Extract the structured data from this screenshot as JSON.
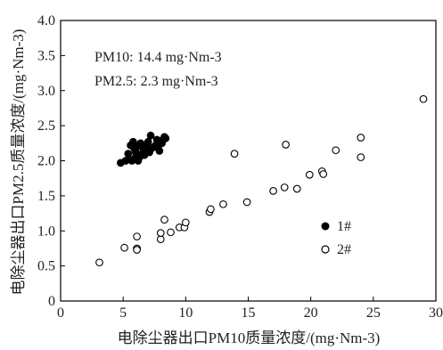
{
  "chart_data": {
    "type": "scatter",
    "xlabel": "电除尘器出口PM10质量浓度/(mg·Nm-3)",
    "ylabel": "电除尘器出口PM2.5质量浓度/(mg·Nm-3)",
    "xlim": [
      0,
      30
    ],
    "ylim": [
      0,
      4.0
    ],
    "xticks": [
      "0",
      "5",
      "10",
      "15",
      "20",
      "25",
      "30"
    ],
    "yticks": [
      "0",
      "0.5",
      "1.0",
      "1.5",
      "2.0",
      "2.5",
      "3.0",
      "3.5",
      "4.0"
    ],
    "annotations": [
      "PM10: 14.4 mg·Nm-3",
      "PM2.5: 2.3 mg·Nm-3"
    ],
    "legend_position": "right-middle",
    "series": [
      {
        "name": "1#",
        "marker": "filled-circle",
        "color": "#000000",
        "points": [
          [
            4.8,
            1.97
          ],
          [
            5.2,
            2.0
          ],
          [
            5.5,
            2.02
          ],
          [
            5.7,
            2.0
          ],
          [
            6.0,
            2.05
          ],
          [
            6.2,
            2.0
          ],
          [
            6.5,
            2.1
          ],
          [
            6.7,
            2.08
          ],
          [
            6.9,
            2.12
          ],
          [
            7.1,
            2.12
          ],
          [
            7.3,
            2.18
          ],
          [
            7.6,
            2.22
          ],
          [
            7.8,
            2.2
          ],
          [
            8.0,
            2.28
          ],
          [
            8.2,
            2.3
          ],
          [
            8.3,
            2.34
          ],
          [
            5.6,
            2.22
          ],
          [
            5.9,
            2.17
          ],
          [
            6.1,
            2.2
          ],
          [
            6.4,
            2.25
          ],
          [
            6.8,
            2.15
          ],
          [
            7.0,
            2.27
          ],
          [
            7.5,
            2.2
          ],
          [
            7.9,
            2.14
          ],
          [
            8.1,
            2.25
          ],
          [
            6.3,
            2.05
          ],
          [
            6.6,
            2.18
          ],
          [
            5.4,
            2.1
          ],
          [
            7.2,
            2.36
          ],
          [
            6.0,
            2.12
          ],
          [
            5.8,
            2.27
          ],
          [
            7.7,
            2.3
          ],
          [
            8.4,
            2.32
          ],
          [
            6.9,
            2.22
          ],
          [
            6.1,
            2.08
          ]
        ]
      },
      {
        "name": "2#",
        "marker": "open-circle",
        "color": "#000000",
        "points": [
          [
            3.1,
            0.55
          ],
          [
            5.1,
            0.76
          ],
          [
            6.1,
            0.75
          ],
          [
            6.1,
            0.92
          ],
          [
            6.1,
            0.73
          ],
          [
            8.0,
            0.88
          ],
          [
            8.0,
            0.97
          ],
          [
            8.3,
            1.16
          ],
          [
            8.8,
            0.98
          ],
          [
            9.5,
            1.05
          ],
          [
            9.9,
            1.05
          ],
          [
            10.0,
            1.12
          ],
          [
            11.9,
            1.27
          ],
          [
            12.0,
            1.31
          ],
          [
            13.0,
            1.38
          ],
          [
            13.9,
            2.1
          ],
          [
            14.9,
            1.41
          ],
          [
            17.0,
            1.57
          ],
          [
            17.9,
            1.62
          ],
          [
            18.0,
            2.23
          ],
          [
            18.9,
            1.6
          ],
          [
            19.9,
            1.8
          ],
          [
            20.9,
            1.85
          ],
          [
            21.0,
            1.81
          ],
          [
            22.0,
            2.15
          ],
          [
            24.0,
            2.05
          ],
          [
            24.0,
            2.33
          ],
          [
            29.0,
            2.88
          ]
        ]
      }
    ]
  }
}
